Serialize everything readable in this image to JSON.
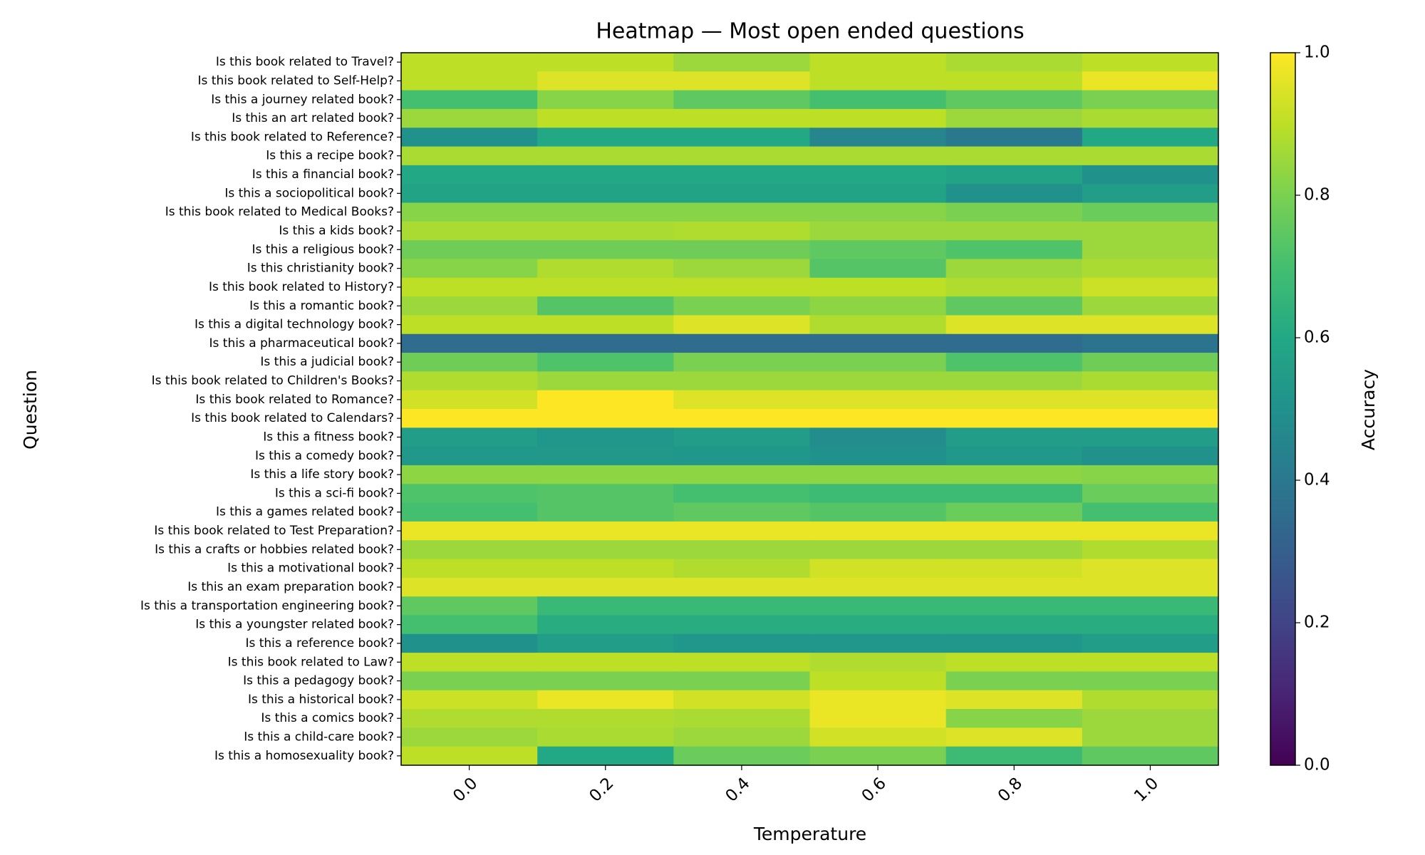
{
  "chart_data": {
    "type": "heatmap",
    "title": "Heatmap — Most open ended questions",
    "x_label": "Temperature",
    "y_label": "Question",
    "colorbar_label": "Accuracy",
    "colormap": "viridis",
    "x": [
      0.0,
      0.2,
      0.4,
      0.6,
      0.8,
      1.0
    ],
    "xlim": [
      -0.1,
      1.1
    ],
    "xticks": [
      {
        "value": 0,
        "label": "0.0"
      },
      {
        "value": 0.2,
        "label": "0.2"
      },
      {
        "value": 0.4,
        "label": "0.4"
      },
      {
        "value": 0.6,
        "label": "0.6"
      },
      {
        "value": 0.8,
        "label": "0.8"
      },
      {
        "value": 1,
        "label": "1.0"
      }
    ],
    "zlim": [
      0,
      1
    ],
    "zticks": [
      {
        "value": 0,
        "label": "0.0"
      },
      {
        "value": 0.2,
        "label": "0.2"
      },
      {
        "value": 0.4,
        "label": "0.4"
      },
      {
        "value": 0.6,
        "label": "0.6"
      },
      {
        "value": 0.8,
        "label": "0.8"
      },
      {
        "value": 1,
        "label": "1.0"
      }
    ],
    "categories": [
      "Is this book related to Travel?",
      "Is this book related to Self-Help?",
      "Is this a journey related book?",
      "Is this an art related book?",
      "Is this book related to Reference?",
      "Is this a recipe book?",
      "Is this a financial book?",
      "Is this a sociopolitical book?",
      "Is this book related to Medical Books?",
      "Is this a kids book?",
      "Is this a religious book?",
      "Is this christianity book?",
      "Is this book related to History?",
      "Is this a romantic book?",
      "Is this a digital technology book?",
      "Is this a pharmaceutical book?",
      "Is this a judicial book?",
      "Is this book related to Children's Books?",
      "Is this book related to Romance?",
      "Is this book related to Calendars?",
      "Is this a fitness book?",
      "Is this a comedy book?",
      "Is this a life story book?",
      "Is this a sci-fi book?",
      "Is this a games related book?",
      "Is this book related to Test Preparation?",
      "Is this a crafts or hobbies related book?",
      "Is this a motivational book?",
      "Is this an exam preparation book?",
      "Is this a transportation engineering book?",
      "Is this a youngster related book?",
      "Is this a reference book?",
      "Is this book related to Law?",
      "Is this a pedagogy book?",
      "Is this a historical book?",
      "Is this a comics book?",
      "Is this a child-care book?",
      "Is this a homosexuality book?"
    ],
    "values": [
      [
        0.9,
        0.9,
        0.85,
        0.9,
        0.87,
        0.9
      ],
      [
        0.9,
        0.95,
        0.95,
        0.9,
        0.9,
        0.97
      ],
      [
        0.7,
        0.82,
        0.75,
        0.7,
        0.75,
        0.8
      ],
      [
        0.85,
        0.9,
        0.9,
        0.9,
        0.85,
        0.87
      ],
      [
        0.5,
        0.6,
        0.6,
        0.45,
        0.4,
        0.6
      ],
      [
        0.87,
        0.87,
        0.87,
        0.87,
        0.87,
        0.87
      ],
      [
        0.6,
        0.6,
        0.6,
        0.6,
        0.58,
        0.5
      ],
      [
        0.58,
        0.58,
        0.58,
        0.58,
        0.5,
        0.55
      ],
      [
        0.82,
        0.82,
        0.82,
        0.82,
        0.8,
        0.77
      ],
      [
        0.87,
        0.87,
        0.88,
        0.85,
        0.85,
        0.85
      ],
      [
        0.78,
        0.78,
        0.78,
        0.75,
        0.72,
        0.85
      ],
      [
        0.82,
        0.88,
        0.85,
        0.73,
        0.85,
        0.87
      ],
      [
        0.9,
        0.9,
        0.9,
        0.9,
        0.88,
        0.92
      ],
      [
        0.85,
        0.73,
        0.8,
        0.83,
        0.75,
        0.85
      ],
      [
        0.9,
        0.9,
        0.95,
        0.88,
        0.95,
        0.95
      ],
      [
        0.35,
        0.35,
        0.35,
        0.35,
        0.35,
        0.38
      ],
      [
        0.78,
        0.72,
        0.8,
        0.8,
        0.72,
        0.78
      ],
      [
        0.88,
        0.85,
        0.85,
        0.85,
        0.85,
        0.87
      ],
      [
        0.93,
        1.0,
        0.95,
        0.95,
        0.95,
        0.95
      ],
      [
        1.0,
        1.0,
        1.0,
        1.0,
        1.0,
        1.0
      ],
      [
        0.55,
        0.52,
        0.55,
        0.48,
        0.55,
        0.55
      ],
      [
        0.53,
        0.53,
        0.52,
        0.5,
        0.53,
        0.5
      ],
      [
        0.83,
        0.83,
        0.83,
        0.83,
        0.83,
        0.82
      ],
      [
        0.72,
        0.73,
        0.7,
        0.68,
        0.68,
        0.77
      ],
      [
        0.7,
        0.73,
        0.75,
        0.73,
        0.77,
        0.7
      ],
      [
        0.97,
        0.97,
        0.97,
        0.97,
        0.97,
        0.97
      ],
      [
        0.85,
        0.85,
        0.85,
        0.85,
        0.85,
        0.88
      ],
      [
        0.9,
        0.9,
        0.88,
        0.93,
        0.93,
        0.95
      ],
      [
        0.95,
        0.95,
        0.95,
        0.95,
        0.95,
        0.95
      ],
      [
        0.75,
        0.67,
        0.67,
        0.67,
        0.67,
        0.67
      ],
      [
        0.7,
        0.62,
        0.62,
        0.62,
        0.62,
        0.62
      ],
      [
        0.5,
        0.55,
        0.52,
        0.52,
        0.52,
        0.55
      ],
      [
        0.9,
        0.9,
        0.9,
        0.88,
        0.9,
        0.9
      ],
      [
        0.8,
        0.8,
        0.8,
        0.9,
        0.8,
        0.8
      ],
      [
        0.92,
        0.97,
        0.93,
        0.97,
        0.95,
        0.88
      ],
      [
        0.88,
        0.88,
        0.87,
        0.97,
        0.82,
        0.85
      ],
      [
        0.85,
        0.87,
        0.85,
        0.93,
        0.95,
        0.85
      ],
      [
        0.9,
        0.6,
        0.77,
        0.8,
        0.68,
        0.75
      ]
    ]
  }
}
